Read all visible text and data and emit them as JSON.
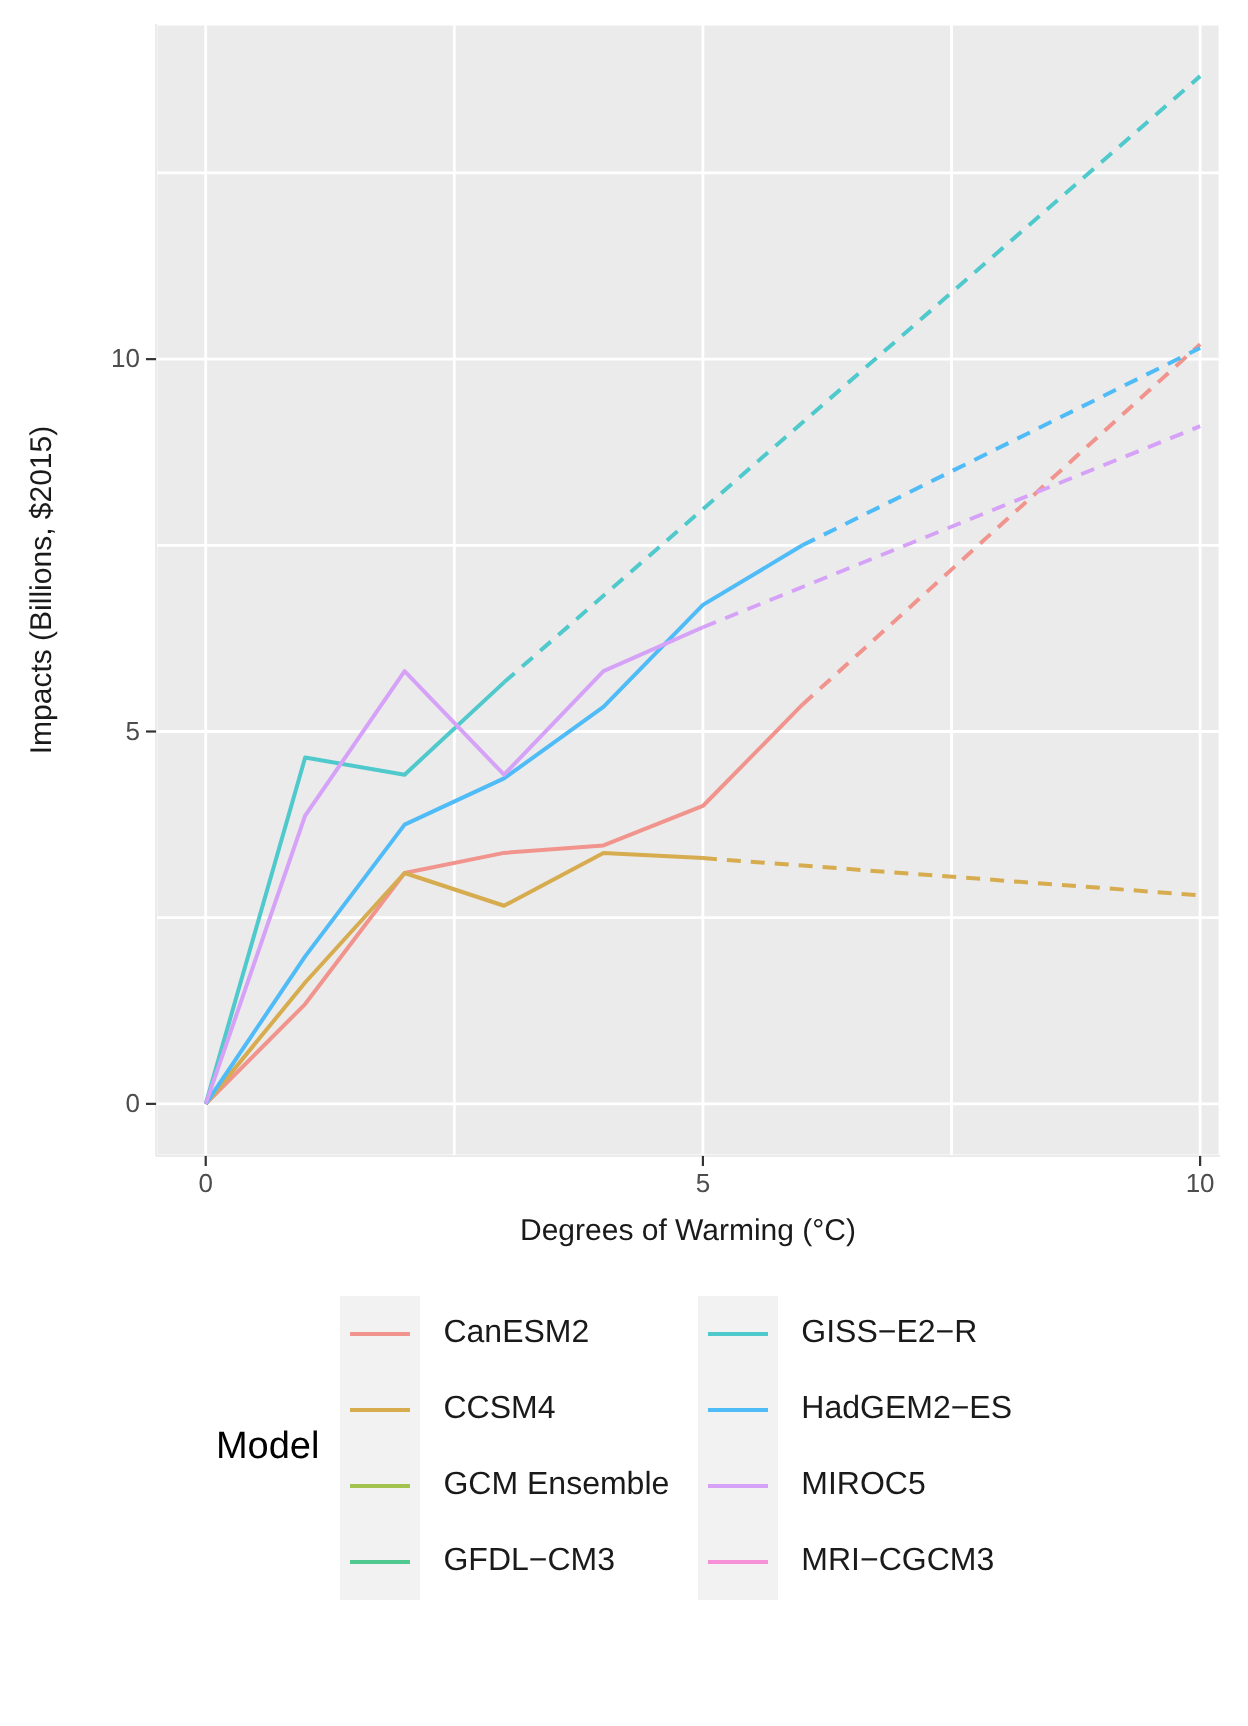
{
  "chart_data": {
    "type": "line",
    "xlabel": "Degrees of Warming (°C)",
    "ylabel": "Impacts (Billions, $2015)",
    "legend_title": "Model",
    "legend": "bottom",
    "grid": true,
    "marker": "none",
    "line_style": "solid",
    "xlim": [
      -0.5,
      10.2
    ],
    "ylim": [
      -0.7,
      14.5
    ],
    "xticks": [
      0,
      5,
      10,
      {
        "value": 2.5,
        "label": null
      },
      {
        "value": 7.5,
        "label": null
      }
    ],
    "yticks": [
      0,
      5,
      10,
      {
        "value": 2.5,
        "label": null
      },
      {
        "value": 7.5,
        "label": null
      },
      {
        "value": 12.5,
        "label": null
      }
    ],
    "series": [
      {
        "name": "CanESM2",
        "color": "#f1948d",
        "x": [
          0,
          1,
          2,
          3,
          4,
          5,
          6
        ],
        "values": [
          0,
          1.34,
          3.1,
          3.37,
          3.47,
          4.0,
          5.36
        ]
      },
      {
        "name": "CCSM4",
        "color": "#d6ac4f",
        "x": [
          0,
          1,
          2,
          3,
          4,
          5
        ],
        "values": [
          0,
          1.63,
          3.1,
          2.66,
          3.37,
          3.3
        ]
      },
      {
        "name": "GCM Ensemble",
        "color": "#a3c34f"
      },
      {
        "name": "GFDL−CM3",
        "color": "#4fc98f"
      },
      {
        "name": "GISS−E2−R",
        "color": "#4fc9cb",
        "x": [
          0,
          1,
          2,
          3
        ],
        "values": [
          0,
          4.65,
          4.42,
          5.66
        ]
      },
      {
        "name": "HadGEM2−ES",
        "color": "#4fbbf7",
        "x": [
          0,
          1,
          2,
          3,
          4,
          5,
          6
        ],
        "values": [
          0,
          1.98,
          3.75,
          4.37,
          5.33,
          6.7,
          7.5
        ]
      },
      {
        "name": "MIROC5",
        "color": "#d5a2f7",
        "x": [
          0,
          1,
          2,
          3,
          4,
          5
        ],
        "values": [
          0,
          3.87,
          5.81,
          4.42,
          5.81,
          6.4
        ]
      },
      {
        "name": "MRI−CGCM3",
        "color": "#f690d7"
      },
      {
        "color": "#f1948d",
        "line_style": "dashed",
        "x": [
          6,
          10
        ],
        "values": [
          5.36,
          10.2
        ]
      },
      {
        "color": "#d6ac4f",
        "line_style": "dashed",
        "x": [
          5,
          10
        ],
        "values": [
          3.3,
          2.8
        ]
      },
      {
        "color": "#4fc9cb",
        "line_style": "dashed",
        "x": [
          3,
          10
        ],
        "values": [
          5.66,
          13.8
        ]
      },
      {
        "color": "#4fbbf7",
        "line_style": "dashed",
        "x": [
          6,
          10
        ],
        "values": [
          7.5,
          10.15
        ]
      },
      {
        "color": "#d5a2f7",
        "line_style": "dashed",
        "x": [
          5,
          10
        ],
        "values": [
          6.4,
          9.1
        ]
      }
    ]
  }
}
